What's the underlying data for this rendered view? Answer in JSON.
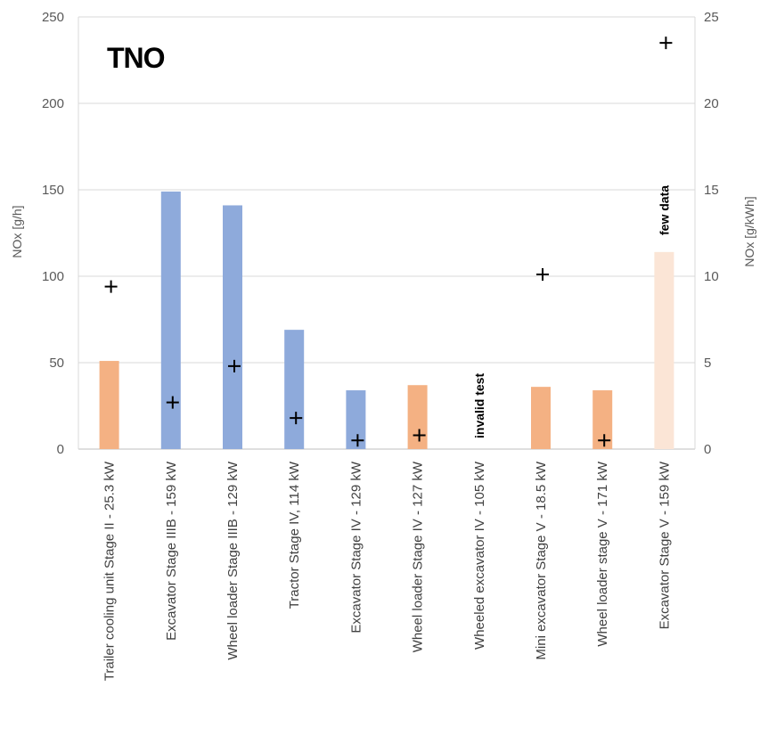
{
  "logo": "TNO",
  "chart_data": {
    "type": "bar",
    "categories": [
      "Trailer cooling unit Stage II - 25.3 kW",
      "Excavator Stage IIIB - 159 kW",
      "Wheel loader Stage IIIB - 129 kW",
      "Tractor Stage IV, 114 kW",
      "Excavator Stage IV - 129 kW",
      "Wheel loader Stage IV - 127 kW",
      "Wheeled excavator IV - 105 kW",
      "Mini excavator Stage V - 18.5 kW",
      "Wheel loader stage V - 171 kW",
      "Excavator Stage V - 159 kW"
    ],
    "series": [
      {
        "axis": "left",
        "mark": "bar",
        "values": [
          51,
          149,
          141,
          69,
          34,
          37,
          null,
          36,
          34,
          114
        ],
        "bar_colors": [
          "#f4b183",
          "#8eaadb",
          "#8eaadb",
          "#8eaadb",
          "#8eaadb",
          "#f4b183",
          null,
          "#f4b183",
          "#f4b183",
          "#fbe5d6"
        ]
      },
      {
        "axis": "right",
        "mark": "plus",
        "values": [
          9.4,
          2.7,
          4.8,
          1.8,
          0.5,
          0.8,
          null,
          10.1,
          0.5,
          23.5
        ]
      }
    ],
    "ylabel": "NOx [g/h]",
    "ylim": [
      0,
      250
    ],
    "yticks": [
      "0",
      "50",
      "100",
      "150",
      "200",
      "250"
    ],
    "y2label": "NOx [g/kWh]",
    "y2lim": [
      0,
      25
    ],
    "y2ticks": [
      "0",
      "5",
      "10",
      "15",
      "20",
      "25"
    ],
    "grid": true,
    "annotations": [
      {
        "category_index": 6,
        "text": "invalid test"
      },
      {
        "category_index": 9,
        "text": "few data"
      }
    ]
  }
}
